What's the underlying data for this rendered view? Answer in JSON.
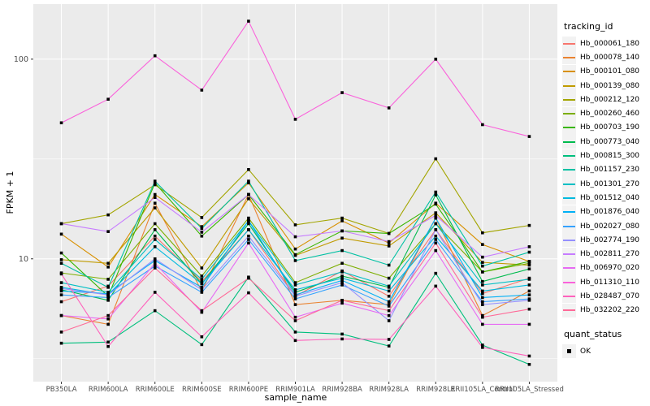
{
  "figure": {
    "panel_background": "#EBEBEB",
    "grid_color": "#FFFFFF",
    "tick_label_color": "#4D4D4D",
    "axis_title_color": "#000000",
    "point_color": "#000000",
    "legend_key_background": "#F2F2F2"
  },
  "chart_data": {
    "type": "line",
    "title": "",
    "xlabel": "sample_name",
    "ylabel": "FPKM + 1",
    "y_scale": "log10",
    "y_ticks": [
      100,
      10
    ],
    "y_minor_gridlines": [
      31.62,
      3.162
    ],
    "ylim_log10": [
      0.385,
      2.276
    ],
    "grid": true,
    "legend_position": "right",
    "categories": [
      "PB350LA",
      "RRIM600LA",
      "RRIM600LE",
      "RRIM600SE",
      "RRIM600PE",
      "RRIM901LA",
      "RRIM928BA",
      "RRIM928LA",
      "RRIM928LE",
      "RRII105LA_Control",
      "RRII105LA_Stressed"
    ],
    "legend": {
      "title": "tracking_id"
    },
    "legend2": {
      "title": "quant_status",
      "items": [
        {
          "label": "OK",
          "marker": "black-square"
        }
      ]
    },
    "series": [
      {
        "name": "Hb_000061_180",
        "color": "#F8766D",
        "values": [
          6.1,
          7.3,
          13,
          7.7,
          14,
          6.5,
          8.7,
          6.5,
          14,
          6.7,
          8.0
        ]
      },
      {
        "name": "Hb_000078_140",
        "color": "#EA8331",
        "values": [
          5.2,
          4.7,
          19,
          6.9,
          21,
          5.9,
          6.2,
          5.9,
          16,
          5.2,
          6.9
        ]
      },
      {
        "name": "Hb_000101_080",
        "color": "#D89000",
        "values": [
          13.3,
          9.1,
          21,
          14.5,
          24,
          11.2,
          15.5,
          12,
          19,
          11.8,
          9.7
        ]
      },
      {
        "name": "Hb_000139_080",
        "color": "#C09B00",
        "values": [
          9.9,
          9.5,
          18,
          9.0,
          20,
          10.4,
          12.7,
          11.6,
          17,
          9.6,
          9.3
        ]
      },
      {
        "name": "Hb_000212_120",
        "color": "#A3A500",
        "values": [
          15,
          16.6,
          23.5,
          16.1,
          28,
          14.8,
          16,
          13.4,
          31.7,
          13.5,
          14.7
        ]
      },
      {
        "name": "Hb_000260_460",
        "color": "#7CAE00",
        "values": [
          8.5,
          7.9,
          15,
          8.2,
          16,
          7.6,
          9.5,
          8.0,
          15,
          8.6,
          9.5
        ]
      },
      {
        "name": "Hb_000703_190",
        "color": "#39B600",
        "values": [
          10.7,
          6.5,
          24,
          13,
          21,
          10.5,
          13.8,
          13.4,
          18.8,
          8.6,
          9.7
        ]
      },
      {
        "name": "Hb_000773_040",
        "color": "#00BB4E",
        "values": [
          7.0,
          6.2,
          14,
          7.5,
          15,
          6.8,
          8.2,
          7.2,
          20.9,
          7.7,
          8.9
        ]
      },
      {
        "name": "Hb_000815_300",
        "color": "#00BF7D",
        "values": [
          3.78,
          3.83,
          5.5,
          3.72,
          8.1,
          4.3,
          4.2,
          3.66,
          8.46,
          3.7,
          2.96
        ]
      },
      {
        "name": "Hb_001157_230",
        "color": "#00C1A3",
        "values": [
          9.5,
          7.2,
          24.5,
          14.2,
          24.5,
          9.8,
          11,
          9.3,
          21.6,
          9.2,
          10.8
        ]
      },
      {
        "name": "Hb_001301_270",
        "color": "#00BFC4",
        "values": [
          7.6,
          6.8,
          12.5,
          7.9,
          15.5,
          7.4,
          8.6,
          7.3,
          15,
          7.4,
          7.9
        ]
      },
      {
        "name": "Hb_001512_040",
        "color": "#00BADE",
        "values": [
          7.2,
          6.6,
          11.5,
          7.5,
          14,
          7.0,
          8.0,
          6.9,
          13,
          6.9,
          7.4
        ]
      },
      {
        "name": "Hb_001876_040",
        "color": "#00B0F6",
        "values": [
          6.9,
          6.7,
          9.8,
          7.2,
          15.5,
          6.6,
          7.8,
          6.1,
          16,
          6.4,
          6.6
        ]
      },
      {
        "name": "Hb_002027_080",
        "color": "#35A2FF",
        "values": [
          6.6,
          6.4,
          9.2,
          6.8,
          12.5,
          6.3,
          7.4,
          5.8,
          12.5,
          6.1,
          6.3
        ]
      },
      {
        "name": "Hb_002774_190",
        "color": "#9590FF",
        "values": [
          7.1,
          6.6,
          10,
          7.0,
          13,
          6.5,
          7.6,
          4.9,
          14,
          5.9,
          6.2
        ]
      },
      {
        "name": "Hb_002811_270",
        "color": "#C77CFF",
        "values": [
          15,
          13.7,
          20.3,
          13.6,
          21,
          12.9,
          13.8,
          12.2,
          16.5,
          10.2,
          11.5
        ]
      },
      {
        "name": "Hb_006970_020",
        "color": "#E76BF3",
        "values": [
          5.2,
          5.0,
          9.5,
          5.4,
          12,
          5.1,
          6.0,
          5.2,
          11,
          4.7,
          4.7
        ]
      },
      {
        "name": "Hb_011310_110",
        "color": "#FA62DB",
        "values": [
          48,
          63,
          104,
          70,
          155,
          50,
          68,
          57,
          100,
          47,
          41
        ]
      },
      {
        "name": "Hb_028487_070",
        "color": "#FF62BC",
        "values": [
          8.4,
          3.64,
          6.8,
          4.07,
          6.76,
          3.9,
          3.97,
          3.95,
          7.3,
          3.6,
          3.26
        ]
      },
      {
        "name": "Hb_032202_220",
        "color": "#FF6A98",
        "values": [
          4.3,
          5.2,
          9.0,
          5.5,
          8.0,
          4.9,
          6.2,
          5.5,
          12,
          5.1,
          5.6
        ]
      }
    ]
  }
}
